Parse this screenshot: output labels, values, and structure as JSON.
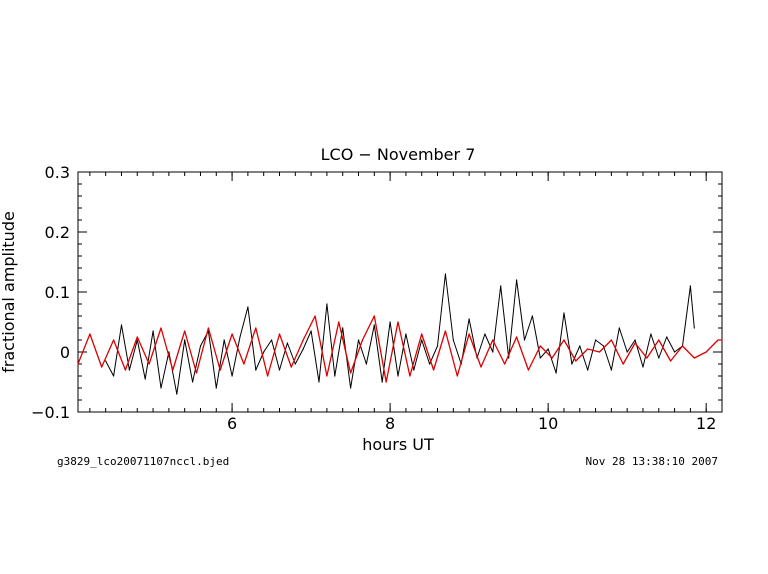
{
  "chart_data": {
    "type": "line",
    "title": "LCO − November 7",
    "xlabel": "hours UT",
    "ylabel": "fractional amplitude",
    "xlim": [
      4.05,
      12.2
    ],
    "ylim": [
      -0.1,
      0.3
    ],
    "x_ticks": [
      6,
      8,
      10,
      12
    ],
    "y_ticks": [
      -0.1,
      0,
      0.1,
      0.2,
      0.3
    ],
    "x_tick_labels": [
      "6",
      "8",
      "10",
      "12"
    ],
    "y_tick_labels": [
      "−0.1",
      "0",
      "0.1",
      "0.2",
      "0.3"
    ],
    "grid": false,
    "footer_left": "g3829_lco20071107nccl.bjed",
    "footer_right": "Nov 28 13:38:10 2007",
    "series": [
      {
        "color": "#000000",
        "x": [
          4.4,
          4.5,
          4.6,
          4.7,
          4.8,
          4.9,
          5.0,
          5.1,
          5.2,
          5.3,
          5.4,
          5.5,
          5.6,
          5.7,
          5.8,
          5.9,
          6.0,
          6.1,
          6.2,
          6.3,
          6.4,
          6.5,
          6.6,
          6.7,
          6.8,
          6.9,
          7.0,
          7.1,
          7.2,
          7.3,
          7.4,
          7.5,
          7.6,
          7.7,
          7.8,
          7.9,
          8.0,
          8.1,
          8.2,
          8.3,
          8.4,
          8.5,
          8.6,
          8.7,
          8.8,
          8.9,
          9.0,
          9.1,
          9.2,
          9.3,
          9.4,
          9.5,
          9.6,
          9.7,
          9.8,
          9.9,
          10.0,
          10.1,
          10.2,
          10.3,
          10.4,
          10.5,
          10.6,
          10.7,
          10.8,
          10.9,
          11.0,
          11.1,
          11.2,
          11.3,
          11.4,
          11.5,
          11.6,
          11.7,
          11.8,
          11.85
        ],
        "y": [
          -0.015,
          -0.04,
          0.045,
          -0.03,
          0.02,
          -0.045,
          0.035,
          -0.06,
          0.0,
          -0.07,
          0.02,
          -0.05,
          0.01,
          0.035,
          -0.06,
          0.02,
          -0.04,
          0.025,
          0.075,
          -0.03,
          0.0,
          0.02,
          -0.03,
          0.015,
          -0.02,
          0.005,
          0.035,
          -0.05,
          0.08,
          -0.04,
          0.04,
          -0.06,
          0.02,
          -0.02,
          0.045,
          -0.05,
          0.05,
          -0.04,
          0.03,
          -0.03,
          0.02,
          -0.02,
          0.01,
          0.13,
          0.02,
          -0.02,
          0.055,
          -0.01,
          0.03,
          0.0,
          0.11,
          -0.01,
          0.12,
          0.02,
          0.06,
          -0.01,
          0.005,
          -0.035,
          0.065,
          -0.02,
          0.01,
          -0.03,
          0.02,
          0.01,
          -0.03,
          0.04,
          0.0,
          0.02,
          -0.025,
          0.03,
          -0.01,
          0.025,
          0.0,
          0.01,
          0.11,
          0.04
        ]
      },
      {
        "color": "#dd0000",
        "x": [
          4.05,
          4.2,
          4.35,
          4.5,
          4.65,
          4.8,
          4.95,
          5.1,
          5.25,
          5.4,
          5.55,
          5.7,
          5.85,
          6.0,
          6.15,
          6.3,
          6.45,
          6.6,
          6.75,
          6.9,
          7.05,
          7.2,
          7.35,
          7.5,
          7.65,
          7.8,
          7.95,
          8.1,
          8.25,
          8.4,
          8.55,
          8.7,
          8.85,
          9.0,
          9.15,
          9.3,
          9.45,
          9.6,
          9.75,
          9.9,
          10.05,
          10.2,
          10.35,
          10.5,
          10.65,
          10.8,
          10.95,
          11.1,
          11.25,
          11.4,
          11.55,
          11.7,
          11.85,
          12.0,
          12.15,
          12.2
        ],
        "y": [
          -0.02,
          0.03,
          -0.025,
          0.02,
          -0.03,
          0.025,
          -0.02,
          0.04,
          -0.03,
          0.035,
          -0.035,
          0.04,
          -0.03,
          0.03,
          -0.02,
          0.04,
          -0.04,
          0.03,
          -0.025,
          0.02,
          0.06,
          -0.04,
          0.05,
          -0.035,
          0.02,
          0.06,
          -0.05,
          0.05,
          -0.04,
          0.03,
          -0.03,
          0.035,
          -0.04,
          0.03,
          -0.025,
          0.02,
          -0.02,
          0.025,
          -0.03,
          0.01,
          -0.01,
          0.02,
          -0.015,
          0.005,
          0.0,
          0.02,
          -0.02,
          0.015,
          -0.01,
          0.02,
          -0.015,
          0.01,
          -0.01,
          0.0,
          0.02,
          0.02
        ]
      }
    ]
  }
}
